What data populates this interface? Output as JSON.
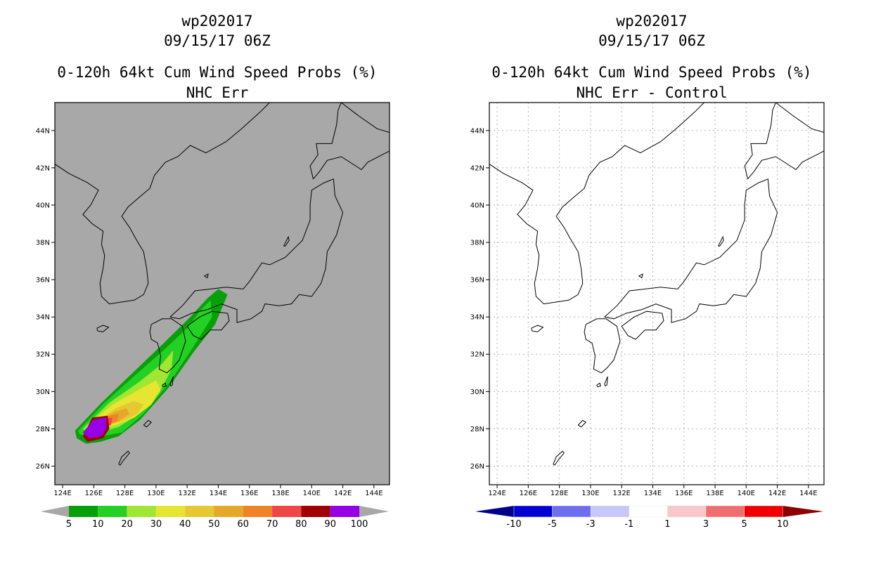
{
  "panels": [
    {
      "storm_id": "wp202017",
      "datetime": "09/15/17 06Z",
      "title": "0-120h 64kt Cum Wind Speed Probs (%)",
      "subtitle": "NHC Err"
    },
    {
      "storm_id": "wp202017",
      "datetime": "09/15/17 06Z",
      "title": "0-120h 64kt Cum Wind Speed Probs (%)",
      "subtitle": "NHC Err - Control"
    }
  ],
  "chart_data": [
    {
      "type": "heatmap",
      "title": "0-120h 64kt Cum Wind Speed Probs (%)",
      "subtitle": "NHC Err",
      "xlabel": "",
      "ylabel": "",
      "xlim": [
        123.5,
        145
      ],
      "ylim": [
        25,
        45.5
      ],
      "xticks": [
        "124E",
        "126E",
        "128E",
        "130E",
        "132E",
        "134E",
        "136E",
        "138E",
        "140E",
        "142E",
        "144E"
      ],
      "yticks": [
        "26N",
        "28N",
        "30N",
        "32N",
        "34N",
        "36N",
        "38N",
        "40N",
        "42N",
        "44N"
      ],
      "grid": false,
      "background": "#a8a8a8",
      "colorbar": {
        "labels": [
          "5",
          "10",
          "20",
          "30",
          "40",
          "50",
          "60",
          "70",
          "80",
          "90",
          "100"
        ],
        "colors": [
          "#08a008",
          "#24d024",
          "#a0e632",
          "#e6e632",
          "#e6c832",
          "#e6a828",
          "#f08228",
          "#f04646",
          "#a00000",
          "#9600e6"
        ],
        "end_color": "#a8a8a8"
      },
      "probability_swath_percent": [
        {
          "level": "5",
          "color": "#08a008"
        },
        {
          "level": "10",
          "color": "#24d024"
        },
        {
          "level": "20",
          "color": "#a0e632"
        },
        {
          "level": "30",
          "color": "#e6e632"
        },
        {
          "level": "40",
          "color": "#e6c832"
        },
        {
          "level": "50",
          "color": "#e6a828"
        },
        {
          "level": "60",
          "color": "#f08228"
        },
        {
          "level": "70",
          "color": "#f04646"
        },
        {
          "level": "80",
          "color": "#a00000"
        },
        {
          "level": "90",
          "color": "#9600e6"
        }
      ]
    },
    {
      "type": "heatmap",
      "title": "0-120h 64kt Cum Wind Speed Probs (%)",
      "subtitle": "NHC Err - Control",
      "xlabel": "",
      "ylabel": "",
      "xlim": [
        123.5,
        145
      ],
      "ylim": [
        25,
        45.5
      ],
      "xticks": [
        "124E",
        "126E",
        "128E",
        "130E",
        "132E",
        "134E",
        "136E",
        "138E",
        "140E",
        "142E",
        "144E"
      ],
      "yticks": [
        "26N",
        "28N",
        "30N",
        "32N",
        "34N",
        "36N",
        "38N",
        "40N",
        "42N",
        "44N"
      ],
      "grid": true,
      "background": "#ffffff",
      "colorbar": {
        "labels": [
          "-10",
          "-5",
          "-3",
          "-1",
          "1",
          "3",
          "5",
          "10"
        ],
        "colors": [
          "#0000d2",
          "#6e6ef0",
          "#c8c8f8",
          "#ffffff",
          "#f8c8c8",
          "#f06e6e",
          "#f00000"
        ],
        "end_left_color": "#00008c",
        "end_right_color": "#8c0000"
      }
    }
  ]
}
